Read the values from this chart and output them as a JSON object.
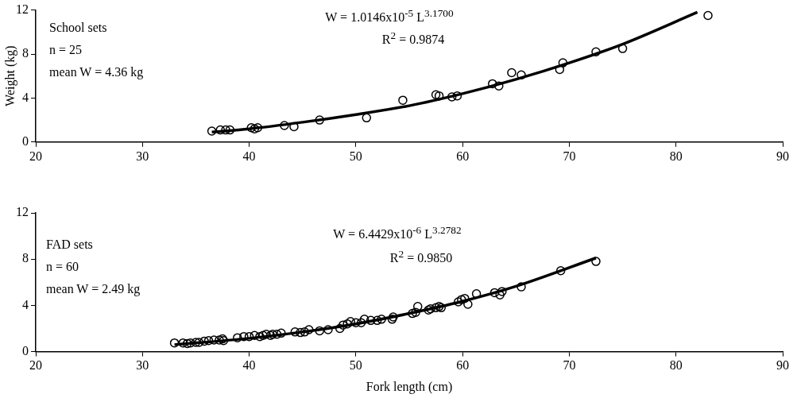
{
  "chart_data": [
    {
      "type": "scatter",
      "ylabel": "Weight (kg)",
      "xlim": [
        20,
        90
      ],
      "xticks": [
        20,
        30,
        40,
        50,
        60,
        70,
        80,
        90
      ],
      "ylim": [
        0,
        12
      ],
      "yticks": [
        0,
        4,
        8,
        12
      ],
      "grid": false,
      "legend": false,
      "annotations": [
        "School sets",
        "n = 25",
        "mean W = 4.36 kg",
        "W = 1.0146x10$^{-5}$ L$^{3.1700}$",
        "R$^{2}$ = 0.9874"
      ],
      "series": [
        {
          "type": "scatter",
          "marker": "circle",
          "color": "#000000",
          "x": [
            36.5,
            37.3,
            37.8,
            38.2,
            40.2,
            40.5,
            40.8,
            43.3,
            44.2,
            46.6,
            51,
            54.4,
            57.5,
            57.8,
            59,
            59.5,
            62.8,
            63.4,
            64.6,
            65.5,
            69.1,
            69.4,
            72.5,
            75,
            83
          ],
          "values": [
            1.0,
            1.1,
            1.1,
            1.1,
            1.3,
            1.2,
            1.3,
            1.5,
            1.4,
            2.0,
            2.2,
            3.8,
            4.3,
            4.2,
            4.1,
            4.2,
            5.3,
            5.1,
            6.3,
            6.1,
            6.6,
            7.2,
            8.2,
            8.5,
            11.5
          ]
        },
        {
          "type": "line",
          "marker": "none",
          "color": "#000000",
          "x": [
            36.5,
            40,
            45,
            50,
            55,
            60,
            65,
            70,
            75,
            82
          ],
          "values": [
            0.9,
            1.2,
            1.8,
            2.5,
            3.3,
            4.4,
            5.7,
            7.2,
            8.9,
            11.8
          ]
        }
      ]
    },
    {
      "type": "scatter",
      "xlabel": "Fork length (cm)",
      "xlim": [
        20,
        90
      ],
      "xticks": [
        20,
        30,
        40,
        50,
        60,
        70,
        80,
        90
      ],
      "ylim": [
        0,
        12
      ],
      "yticks": [
        0,
        4,
        8,
        12
      ],
      "grid": false,
      "legend": false,
      "annotations": [
        "FAD sets",
        "n = 60",
        "mean W = 2.49 kg",
        "W = 6.4429x10$^{-6}$ L$^{3.2782}$",
        "R$^{2}$ = 0.9850"
      ],
      "series": [
        {
          "type": "scatter",
          "marker": "circle",
          "color": "#000000",
          "x": [
            33,
            33.8,
            34.2,
            34.5,
            35,
            35.3,
            35.8,
            36.2,
            36.7,
            37.2,
            37.5,
            37.6,
            38.9,
            39.5,
            40,
            40.5,
            41,
            41.3,
            41.6,
            42,
            42.2,
            42.6,
            43,
            44.3,
            44.8,
            45.2,
            45.6,
            46.6,
            47.4,
            48.5,
            48.8,
            49.2,
            49.5,
            50,
            50.5,
            50.8,
            51.4,
            52,
            52.4,
            53.4,
            53.5,
            55.3,
            55.6,
            55.8,
            56.8,
            57,
            57.5,
            57.8,
            58,
            59.6,
            59.9,
            60.2,
            60.5,
            61.3,
            63,
            63.5,
            63.7,
            65.5,
            69.2,
            72.5
          ],
          "values": [
            0.75,
            0.75,
            0.7,
            0.75,
            0.8,
            0.8,
            0.9,
            0.95,
            1.0,
            1.0,
            1.1,
            0.95,
            1.2,
            1.3,
            1.3,
            1.4,
            1.3,
            1.4,
            1.5,
            1.4,
            1.5,
            1.5,
            1.6,
            1.7,
            1.65,
            1.7,
            1.9,
            1.8,
            1.9,
            2.0,
            2.3,
            2.4,
            2.6,
            2.5,
            2.5,
            2.8,
            2.7,
            2.7,
            2.8,
            2.8,
            3.0,
            3.3,
            3.4,
            3.9,
            3.6,
            3.7,
            3.8,
            3.9,
            3.8,
            4.3,
            4.5,
            4.6,
            4.1,
            5.0,
            5.1,
            4.9,
            5.2,
            5.6,
            7.0,
            7.8
          ]
        },
        {
          "type": "line",
          "marker": "none",
          "color": "#000000",
          "x": [
            33,
            40,
            45,
            50,
            55,
            60,
            65,
            72.5
          ],
          "values": [
            0.6,
            1.15,
            1.7,
            2.4,
            3.3,
            4.35,
            5.65,
            8.1
          ]
        }
      ]
    }
  ]
}
